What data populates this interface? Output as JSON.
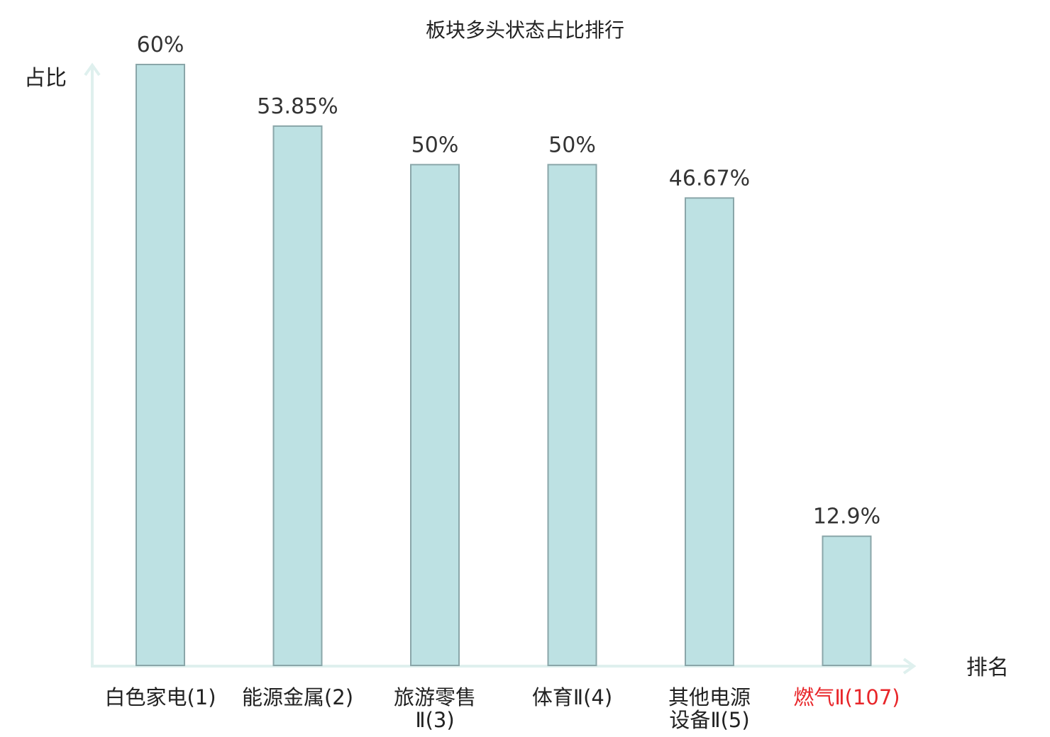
{
  "chart_data": {
    "type": "bar",
    "title": "板块多头状态占比排行",
    "ylabel": "占比",
    "xlabel": "排名",
    "ylim": [
      0,
      60
    ],
    "grid": false,
    "categories": [
      [
        "白色家电(1)"
      ],
      [
        "能源金属(2)"
      ],
      [
        "旅游零售",
        "Ⅱ(3)"
      ],
      [
        "体育Ⅱ(4)"
      ],
      [
        "其他电源",
        "设备Ⅱ(5)"
      ],
      [
        "燃气Ⅱ(107)"
      ]
    ],
    "values": [
      60,
      53.85,
      50,
      50,
      46.67,
      12.9
    ],
    "value_labels": [
      "60%",
      "53.85%",
      "50%",
      "50%",
      "46.67%",
      "12.9%"
    ],
    "highlight_index": 5,
    "colors": {
      "bar_fill": "#bde1e3",
      "bar_stroke": "#8aa6a9",
      "axis": "#dff0ee",
      "label": "#222222",
      "highlight_label": "#e8262a",
      "value_label": "#333333"
    }
  }
}
